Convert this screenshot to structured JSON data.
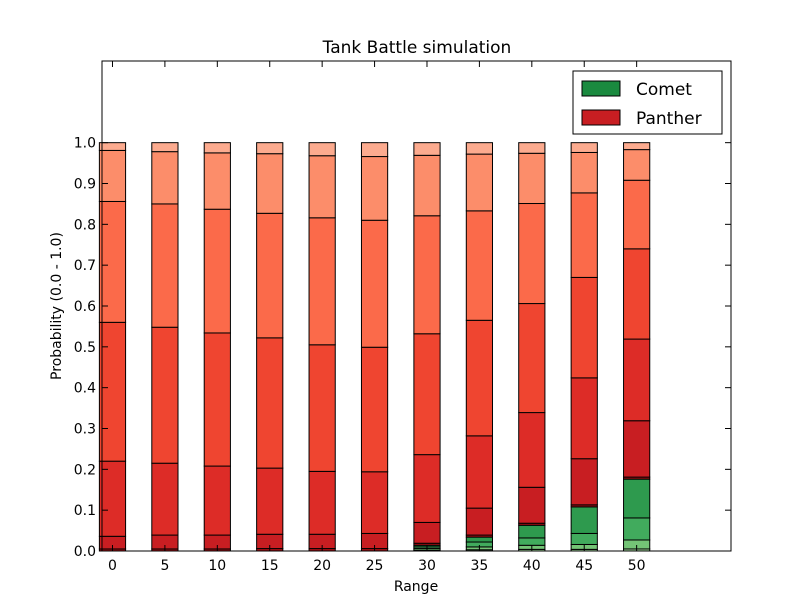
{
  "chart_data": {
    "type": "bar",
    "stacked": true,
    "title": "Tank Battle simulation",
    "xlabel": "Range",
    "ylabel": "Probability (0.0 - 1.0)",
    "ylim": [
      0,
      1.2
    ],
    "xlim": [
      -1,
      59
    ],
    "grid": false,
    "legend_position": "top-right",
    "categories": [
      0,
      5,
      10,
      15,
      20,
      25,
      30,
      35,
      40,
      45,
      50
    ],
    "xticks": [
      "0",
      "5",
      "10",
      "15",
      "20",
      "25",
      "30",
      "35",
      "40",
      "45",
      "50"
    ],
    "yticks": [
      "0.0",
      "0.1",
      "0.2",
      "0.3",
      "0.4",
      "0.5",
      "0.6",
      "0.7",
      "0.8",
      "0.9",
      "1.0"
    ],
    "legend": [
      {
        "label": "Comet",
        "color": "#1a8a3f"
      },
      {
        "label": "Panther",
        "color": "#c81e22"
      }
    ],
    "green_shades": [
      "#a6dba0",
      "#74c476",
      "#41ab5d",
      "#2e9a4e",
      "#1a8a3f"
    ],
    "red_shades": [
      "#a50f15",
      "#c81e22",
      "#dd2c27",
      "#ef4530",
      "#fb6a4a",
      "#fc8d6a",
      "#fcab8f"
    ],
    "bars": [
      {
        "x": 0,
        "green": [
          0,
          0,
          0,
          0,
          0
        ],
        "red": [
          0.005,
          0.031,
          0.184,
          0.34,
          0.296,
          0.125,
          0.019
        ]
      },
      {
        "x": 5,
        "green": [
          0,
          0,
          0,
          0,
          0
        ],
        "red": [
          0.005,
          0.034,
          0.176,
          0.333,
          0.302,
          0.128,
          0.022
        ]
      },
      {
        "x": 10,
        "green": [
          0,
          0,
          0,
          0,
          0
        ],
        "red": [
          0.005,
          0.034,
          0.169,
          0.326,
          0.303,
          0.138,
          0.025
        ]
      },
      {
        "x": 15,
        "green": [
          0,
          0,
          0,
          0,
          0
        ],
        "red": [
          0.006,
          0.035,
          0.162,
          0.319,
          0.305,
          0.146,
          0.027
        ]
      },
      {
        "x": 20,
        "green": [
          0,
          0,
          0,
          0,
          0
        ],
        "red": [
          0.006,
          0.035,
          0.154,
          0.31,
          0.311,
          0.152,
          0.032
        ]
      },
      {
        "x": 25,
        "green": [
          0,
          0,
          0,
          0,
          0
        ],
        "red": [
          0.006,
          0.037,
          0.151,
          0.305,
          0.311,
          0.156,
          0.034
        ]
      },
      {
        "x": 30,
        "green": [
          0.002,
          0.004,
          0.004,
          0.004,
          0
        ],
        "red": [
          0.005,
          0.051,
          0.166,
          0.296,
          0.289,
          0.148,
          0.031
        ]
      },
      {
        "x": 35,
        "green": [
          0.003,
          0.007,
          0.012,
          0.012,
          0
        ],
        "red": [
          0.005,
          0.066,
          0.177,
          0.283,
          0.268,
          0.139,
          0.028
        ]
      },
      {
        "x": 40,
        "green": [
          0.004,
          0.01,
          0.018,
          0.031,
          0
        ],
        "red": [
          0.005,
          0.088,
          0.183,
          0.267,
          0.245,
          0.123,
          0.026
        ]
      },
      {
        "x": 45,
        "green": [
          0.004,
          0.012,
          0.027,
          0.065,
          0
        ],
        "red": [
          0.005,
          0.113,
          0.198,
          0.246,
          0.207,
          0.099,
          0.024
        ]
      },
      {
        "x": 50,
        "green": [
          0.005,
          0.022,
          0.054,
          0.095,
          0
        ],
        "red": [
          0.005,
          0.138,
          0.2,
          0.221,
          0.168,
          0.075,
          0.017
        ]
      }
    ]
  }
}
